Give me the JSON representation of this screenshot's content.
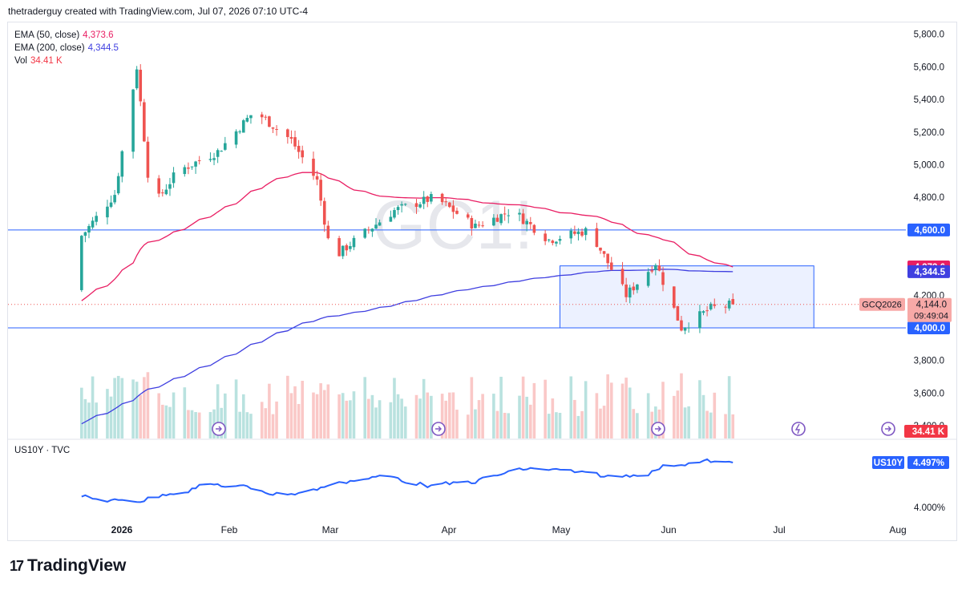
{
  "header": {
    "text": "thetraderguy created with TradingView.com, Jul 07, 2026 07:10 UTC-4"
  },
  "watermark": "GC1!",
  "legend": [
    {
      "label": "EMA (50, close)",
      "value": "4,373.6",
      "color": "#e91e63"
    },
    {
      "label": "EMA (200, close)",
      "value": "4,344.5",
      "color": "#3f3fe0"
    },
    {
      "label": "Vol",
      "value": "34.41 K",
      "color": "#f23645"
    }
  ],
  "price_axis": {
    "ticks": [
      "5,800.0",
      "5,600.0",
      "5,400.0",
      "5,200.0",
      "5,000.0",
      "4,800.0",
      "4,200.0",
      "3,800.0",
      "3,600.0",
      "3,400.0"
    ],
    "tick_values": [
      5800,
      5600,
      5400,
      5200,
      5000,
      4800,
      4200,
      3800,
      3600,
      3400
    ],
    "badges": [
      {
        "text": "4,600.0",
        "value": 4600,
        "color": "#2962ff"
      },
      {
        "text": "4,373.6",
        "value": 4373.6,
        "color": "#e91e63"
      },
      {
        "text": "4,344.5",
        "value": 4344.5,
        "color": "#3f3fe0"
      },
      {
        "text": "4,000.0",
        "value": 4000,
        "color": "#2962ff"
      }
    ],
    "current": {
      "symbol": "GCQ2026",
      "price": "4,144.0",
      "countdown": "09:49:04",
      "value": 4144
    },
    "vol_badge": "34.41 K"
  },
  "time_axis": [
    "2026",
    "Feb",
    "Mar",
    "Apr",
    "May",
    "Jun",
    "Jul",
    "Aug"
  ],
  "lower_pane": {
    "label": "US10Y · TVC",
    "symbol": "US10Y",
    "value": "4.497%",
    "tick": "4.000%"
  },
  "logo": {
    "text": "TradingView",
    "mark": "17"
  },
  "chart_data": [
    {
      "type": "candlestick",
      "symbol": "GC1!",
      "x_label": "",
      "y_range": [
        3400,
        5800
      ],
      "horizontal_levels": [
        4600,
        4000
      ],
      "range_box": {
        "price_low": 4000,
        "price_high": 4380,
        "from": "May 21",
        "to": "Jul 29"
      },
      "ema50_end": 4373.6,
      "ema200_end": 4344.5,
      "last_price": 4144.0,
      "trend_points": [
        {
          "x": "Dec 22",
          "close": 4230
        },
        {
          "x": "Jan 02",
          "close": 4340
        },
        {
          "x": "Jan 12",
          "close": 4590
        },
        {
          "x": "Jan 20",
          "close": 4820
        },
        {
          "x": "Jan 26",
          "close": 5600
        },
        {
          "x": "Jan 30",
          "close": 4730
        },
        {
          "x": "Feb 06",
          "close": 4960
        },
        {
          "x": "Feb 17",
          "close": 5080
        },
        {
          "x": "Feb 27",
          "close": 5330
        },
        {
          "x": "Mar 09",
          "close": 5150
        },
        {
          "x": "Mar 16",
          "close": 4900
        },
        {
          "x": "Mar 20",
          "close": 4420
        },
        {
          "x": "Mar 27",
          "close": 4550
        },
        {
          "x": "Apr 06",
          "close": 4720
        },
        {
          "x": "Apr 17",
          "close": 4800
        },
        {
          "x": "Apr 28",
          "close": 4620
        },
        {
          "x": "May 08",
          "close": 4720
        },
        {
          "x": "May 18",
          "close": 4540
        },
        {
          "x": "May 29",
          "close": 4600
        },
        {
          "x": "Jun 08",
          "close": 4200
        },
        {
          "x": "Jun 16",
          "close": 4400
        },
        {
          "x": "Jun 23",
          "close": 4000
        },
        {
          "x": "Jul 01",
          "close": 4120
        },
        {
          "x": "Jul 07",
          "close": 4144
        }
      ]
    },
    {
      "type": "line",
      "symbol": "US10Y",
      "last_value": 4.497,
      "y_tick": 4.0
    }
  ]
}
